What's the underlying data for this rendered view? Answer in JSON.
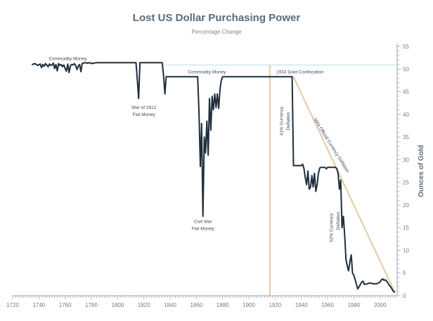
{
  "chart_data": {
    "type": "line",
    "title": "Lost US Dollar Purchasing Power",
    "subtitle": "Percentage Change",
    "xlabel": "",
    "ylabel": "Ounces of Gold",
    "xlim": [
      1720,
      2013
    ],
    "ylim": [
      0,
      55
    ],
    "x_ticks": [
      1720,
      1740,
      1760,
      1780,
      1800,
      1820,
      1840,
      1860,
      1880,
      1900,
      1920,
      1940,
      1960,
      1980,
      2000
    ],
    "y_ticks": [
      0,
      5,
      10,
      15,
      20,
      25,
      30,
      35,
      40,
      45,
      50,
      55
    ],
    "grid": false,
    "colors": {
      "series": "#1f2d3d",
      "reference_line": "#bfe0e8",
      "vertical_marker": "#e6c9a3",
      "trend_line": "#e6c9a3",
      "axis": "#9aa6b2",
      "text": "#5a6b7b"
    },
    "reference_line_value": 50.9,
    "vertical_marker_year": 1916,
    "trend_line": {
      "x": [
        1934,
        2011
      ],
      "y": [
        48.3,
        0.9
      ]
    },
    "series": [
      {
        "x": [
          1735,
          1737,
          1739,
          1741,
          1742,
          1743,
          1744,
          1745,
          1746,
          1747,
          1748,
          1749,
          1750,
          1751,
          1752,
          1753,
          1754,
          1755,
          1756,
          1757,
          1758,
          1759,
          1760,
          1761,
          1762,
          1763,
          1764,
          1765,
          1766,
          1767,
          1768,
          1769,
          1770,
          1771,
          1772,
          1773,
          1775,
          1777,
          1779,
          1780,
          1782,
          1784,
          1786,
          1790,
          1800,
          1810,
          1813,
          1814,
          1815,
          1816,
          1817,
          1818,
          1820,
          1825,
          1830,
          1834,
          1835,
          1836,
          1837,
          1838,
          1840,
          1850,
          1858,
          1860,
          1861,
          1862,
          1863,
          1864,
          1865,
          1866,
          1867,
          1868,
          1869,
          1870,
          1871,
          1872,
          1873,
          1874,
          1875,
          1876,
          1877,
          1878,
          1879,
          1880,
          1885,
          1890,
          1900,
          1910,
          1920,
          1930,
          1933,
          1934,
          1935,
          1936,
          1937,
          1938,
          1939,
          1940,
          1941,
          1942,
          1943,
          1944,
          1945,
          1946,
          1947,
          1948,
          1949,
          1950,
          1951,
          1952,
          1953,
          1954,
          1955,
          1956,
          1957,
          1958,
          1959,
          1960,
          1962,
          1964,
          1966,
          1967,
          1968,
          1969,
          1970,
          1971,
          1972,
          1973,
          1974,
          1975,
          1976,
          1977,
          1978,
          1979,
          1980,
          1981,
          1982,
          1983,
          1984,
          1985,
          1986,
          1987,
          1988,
          1990,
          1992,
          1994,
          1996,
          1998,
          2000,
          2001,
          2002,
          2003,
          2004,
          2005,
          2006,
          2007,
          2008,
          2009,
          2010,
          2011
        ],
        "y": [
          51.0,
          51.2,
          50.8,
          51.1,
          50.3,
          51.0,
          50.6,
          51.2,
          50.9,
          50.5,
          51.1,
          50.8,
          50.9,
          51.3,
          50.1,
          51.0,
          49.6,
          51.2,
          50.8,
          51.0,
          50.5,
          50.9,
          50.1,
          49.5,
          51.1,
          49.2,
          50.7,
          51.0,
          50.9,
          51.2,
          50.8,
          49.9,
          50.6,
          51.0,
          49.4,
          51.2,
          51.4,
          51.3,
          51.4,
          51.2,
          51.3,
          51.4,
          51.4,
          51.4,
          51.4,
          51.4,
          51.4,
          51.4,
          47.5,
          43.5,
          51.4,
          51.4,
          51.4,
          51.4,
          51.4,
          51.4,
          48.5,
          44.5,
          48.3,
          48.3,
          48.3,
          48.3,
          48.3,
          48.3,
          48.3,
          40.5,
          28.5,
          38.0,
          17.5,
          35.0,
          31.5,
          38.5,
          31.0,
          43.5,
          36.5,
          44.0,
          41.0,
          44.5,
          41.5,
          44.5,
          41.3,
          45.5,
          47.5,
          48.3,
          48.3,
          48.3,
          48.3,
          48.3,
          48.3,
          48.3,
          48.3,
          28.7,
          28.7,
          28.7,
          28.7,
          28.7,
          28.7,
          28.7,
          29.0,
          28.0,
          26.0,
          24.5,
          27.5,
          23.5,
          24.0,
          26.5,
          24.0,
          27.0,
          23.0,
          24.5,
          27.0,
          28.2,
          28.3,
          28.3,
          28.3,
          28.3,
          28.0,
          28.3,
          28.3,
          28.3,
          28.3,
          28.0,
          27.0,
          23.5,
          25.5,
          15.0,
          17.5,
          13.5,
          8.0,
          6.5,
          5.5,
          7.5,
          9.0,
          5.0,
          4.5,
          3.5,
          2.5,
          1.5,
          2.0,
          2.5,
          3.0,
          3.2,
          2.5,
          2.6,
          2.8,
          2.7,
          2.6,
          2.7,
          3.0,
          3.5,
          3.7,
          3.4,
          3.5,
          3.2,
          2.8,
          2.3,
          2.0,
          1.5,
          1.0,
          0.8
        ]
      }
    ],
    "annotations": [
      {
        "text": "Commodity Money",
        "x": 1762,
        "y": 52.0,
        "rotate": 0,
        "anchor": "middle"
      },
      {
        "text": "Commodity Money",
        "x": 1868,
        "y": 49.0,
        "rotate": 0,
        "anchor": "middle"
      },
      {
        "text": "1933 Gold Confiscation",
        "x": 1939,
        "y": 49.0,
        "rotate": 0,
        "anchor": "middle"
      },
      {
        "text": "War of 1812",
        "x": 1820,
        "y": 41.2,
        "rotate": 0,
        "anchor": "middle"
      },
      {
        "text": "Fiat Money",
        "x": 1820,
        "y": 39.7,
        "rotate": 0,
        "anchor": "middle"
      },
      {
        "text": "Civil War",
        "x": 1865,
        "y": 16.0,
        "rotate": 0,
        "anchor": "middle"
      },
      {
        "text": "Fiat Money",
        "x": 1865,
        "y": 14.5,
        "rotate": 0,
        "anchor": "middle"
      },
      {
        "text": "41% Currency",
        "x": 1926,
        "y": 38.5,
        "rotate": -90,
        "anchor": "middle"
      },
      {
        "text": "Deflation",
        "x": 1931,
        "y": 38.5,
        "rotate": -90,
        "anchor": "middle"
      },
      {
        "text": "52% Currency",
        "x": 1964,
        "y": 15.0,
        "rotate": -90,
        "anchor": "middle"
      },
      {
        "text": "Deflation",
        "x": 1969,
        "y": 16.5,
        "rotate": -90,
        "anchor": "middle"
      },
      {
        "text": "59% Official Currency Deflation",
        "x": 1962,
        "y": 33.0,
        "rotate": 58,
        "anchor": "middle"
      }
    ]
  }
}
